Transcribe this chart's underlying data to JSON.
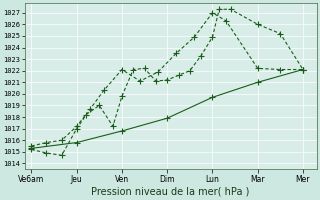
{
  "bg_color": "#cce8e0",
  "plot_bg_color": "#d8ede8",
  "grid_color": "#ffffff",
  "line_color": "#1a5c1a",
  "title": "Pression niveau de la mer( hPa )",
  "xlabels": [
    "Ve6am",
    "Jeu",
    "Ven",
    "Dim",
    "Lun",
    "Mar",
    "Mer"
  ],
  "x_positions": [
    0,
    1,
    2,
    3,
    4,
    5,
    6
  ],
  "ylim": [
    1013.5,
    1027.8
  ],
  "yticks": [
    1014,
    1015,
    1016,
    1017,
    1018,
    1019,
    1020,
    1021,
    1022,
    1023,
    1024,
    1025,
    1026,
    1027
  ],
  "line1_x": [
    0,
    0.33,
    0.67,
    1.0,
    1.2,
    1.5,
    1.8,
    2.0,
    2.25,
    2.5,
    2.75,
    3.0,
    3.25,
    3.5,
    3.75,
    4.0,
    4.15,
    4.4,
    5.0,
    5.5,
    6.0
  ],
  "line1_y": [
    1015.5,
    1015.8,
    1016.0,
    1017.2,
    1018.2,
    1019.0,
    1017.2,
    1019.8,
    1022.1,
    1022.2,
    1021.1,
    1021.2,
    1021.6,
    1022.0,
    1023.3,
    1024.9,
    1027.3,
    1027.3,
    1026.0,
    1025.2,
    1022.1
  ],
  "line2_x": [
    0,
    0.33,
    0.67,
    1.0,
    1.3,
    1.6,
    2.0,
    2.4,
    2.8,
    3.2,
    3.6,
    4.0,
    4.3,
    5.0,
    5.5,
    6.0
  ],
  "line2_y": [
    1015.2,
    1014.9,
    1014.7,
    1017.0,
    1018.7,
    1020.3,
    1022.1,
    1021.1,
    1021.9,
    1023.5,
    1024.9,
    1027.0,
    1026.3,
    1022.2,
    1022.1,
    1022.1
  ],
  "line3_x": [
    0,
    1.0,
    2.0,
    3.0,
    4.0,
    5.0,
    6.0
  ],
  "line3_y": [
    1015.3,
    1015.8,
    1016.8,
    1017.9,
    1019.7,
    1021.0,
    1022.1
  ]
}
